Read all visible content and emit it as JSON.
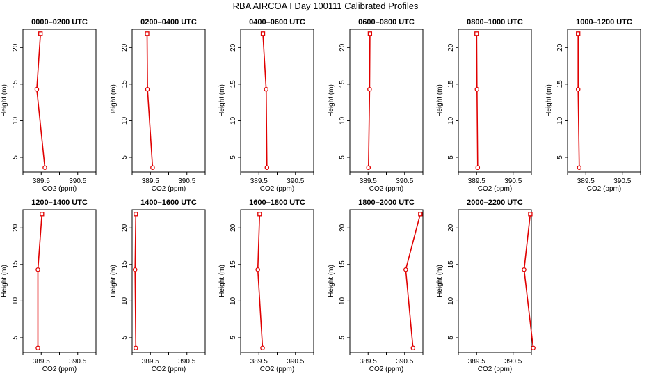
{
  "figure": {
    "title": "RBA AIRCOA I  Day 100111  Calibrated Profiles"
  },
  "chart_data": [
    {
      "type": "line",
      "title": "0000–0200 UTC",
      "xlabel": "CO2 (ppm)",
      "ylabel": "Height (m)",
      "xlim": [
        389.0,
        391.0
      ],
      "ylim": [
        3,
        22.5
      ],
      "x_ticks": [
        "389.5",
        "390.5"
      ],
      "y_ticks": [
        "5",
        "10",
        "15",
        "20"
      ],
      "color": "#e00000",
      "grid": false,
      "series": [
        {
          "x": [
            389.6,
            389.38,
            389.48
          ],
          "y": [
            3.6,
            14.3,
            21.9
          ]
        }
      ]
    },
    {
      "type": "line",
      "title": "0200–0400 UTC",
      "xlabel": "CO2 (ppm)",
      "ylabel": "Height (m)",
      "xlim": [
        389.0,
        391.0
      ],
      "ylim": [
        3,
        22.5
      ],
      "x_ticks": [
        "389.5",
        "390.5"
      ],
      "y_ticks": [
        "5",
        "10",
        "15",
        "20"
      ],
      "color": "#e00000",
      "grid": false,
      "series": [
        {
          "x": [
            389.56,
            389.42,
            389.41
          ],
          "y": [
            3.6,
            14.3,
            21.9
          ]
        }
      ]
    },
    {
      "type": "line",
      "title": "0400–0600 UTC",
      "xlabel": "CO2 (ppm)",
      "ylabel": "Height (m)",
      "xlim": [
        389.0,
        391.0
      ],
      "ylim": [
        3,
        22.5
      ],
      "x_ticks": [
        "389.5",
        "390.5"
      ],
      "y_ticks": [
        "5",
        "10",
        "15",
        "20"
      ],
      "color": "#e00000",
      "grid": false,
      "series": [
        {
          "x": [
            389.72,
            389.7,
            389.61
          ],
          "y": [
            3.6,
            14.3,
            21.9
          ]
        }
      ]
    },
    {
      "type": "line",
      "title": "0600–0800 UTC",
      "xlabel": "CO2 (ppm)",
      "ylabel": "Height (m)",
      "xlim": [
        389.0,
        391.0
      ],
      "ylim": [
        3,
        22.5
      ],
      "x_ticks": [
        "389.5",
        "390.5"
      ],
      "y_ticks": [
        "5",
        "10",
        "15",
        "20"
      ],
      "color": "#e00000",
      "grid": false,
      "series": [
        {
          "x": [
            389.51,
            389.54,
            389.55
          ],
          "y": [
            3.6,
            14.3,
            21.9
          ]
        }
      ]
    },
    {
      "type": "line",
      "title": "0800–1000 UTC",
      "xlabel": "CO2 (ppm)",
      "ylabel": "Height (m)",
      "xlim": [
        389.0,
        391.0
      ],
      "ylim": [
        3,
        22.5
      ],
      "x_ticks": [
        "389.5",
        "390.5"
      ],
      "y_ticks": [
        "5",
        "10",
        "15",
        "20"
      ],
      "color": "#e00000",
      "grid": false,
      "series": [
        {
          "x": [
            389.53,
            389.51,
            389.5
          ],
          "y": [
            3.6,
            14.3,
            21.9
          ]
        }
      ]
    },
    {
      "type": "line",
      "title": "1000–1200 UTC",
      "xlabel": "CO2 (ppm)",
      "ylabel": "Height (m)",
      "xlim": [
        389.0,
        391.0
      ],
      "ylim": [
        3,
        22.5
      ],
      "x_ticks": [
        "389.5",
        "390.5"
      ],
      "y_ticks": [
        "5",
        "10",
        "15",
        "20"
      ],
      "color": "#e00000",
      "grid": false,
      "series": [
        {
          "x": [
            389.32,
            389.29,
            389.29
          ],
          "y": [
            3.6,
            14.3,
            21.9
          ]
        }
      ]
    },
    {
      "type": "line",
      "title": "1200–1400 UTC",
      "xlabel": "CO2 (ppm)",
      "ylabel": "Height (m)",
      "xlim": [
        389.0,
        391.0
      ],
      "ylim": [
        3,
        22.5
      ],
      "x_ticks": [
        "389.5",
        "390.5"
      ],
      "y_ticks": [
        "5",
        "10",
        "15",
        "20"
      ],
      "color": "#e00000",
      "grid": false,
      "series": [
        {
          "x": [
            389.41,
            389.41,
            389.52
          ],
          "y": [
            3.6,
            14.3,
            21.9
          ]
        }
      ]
    },
    {
      "type": "line",
      "title": "1400–1600 UTC",
      "xlabel": "CO2 (ppm)",
      "ylabel": "Height (m)",
      "xlim": [
        389.0,
        391.0
      ],
      "ylim": [
        3,
        22.5
      ],
      "x_ticks": [
        "389.5",
        "390.5"
      ],
      "y_ticks": [
        "5",
        "10",
        "15",
        "20"
      ],
      "color": "#e00000",
      "grid": false,
      "series": [
        {
          "x": [
            389.1,
            389.08,
            389.1
          ],
          "y": [
            3.6,
            14.3,
            21.9
          ]
        }
      ]
    },
    {
      "type": "line",
      "title": "1600–1800 UTC",
      "xlabel": "CO2 (ppm)",
      "ylabel": "Height (m)",
      "xlim": [
        389.0,
        391.0
      ],
      "ylim": [
        3,
        22.5
      ],
      "x_ticks": [
        "389.5",
        "390.5"
      ],
      "y_ticks": [
        "5",
        "10",
        "15",
        "20"
      ],
      "color": "#e00000",
      "grid": false,
      "series": [
        {
          "x": [
            389.6,
            389.47,
            389.52
          ],
          "y": [
            3.6,
            14.3,
            21.9
          ]
        }
      ]
    },
    {
      "type": "line",
      "title": "1800–2000 UTC",
      "xlabel": "CO2 (ppm)",
      "ylabel": "Height (m)",
      "xlim": [
        389.0,
        391.0
      ],
      "ylim": [
        3,
        22.5
      ],
      "x_ticks": [
        "389.5",
        "390.5"
      ],
      "y_ticks": [
        "5",
        "10",
        "15",
        "20"
      ],
      "color": "#e00000",
      "grid": false,
      "series": [
        {
          "x": [
            390.73,
            390.53,
            390.93
          ],
          "y": [
            3.6,
            14.3,
            21.9
          ]
        }
      ]
    },
    {
      "type": "line",
      "title": "2000–2200 UTC",
      "xlabel": "CO2 (ppm)",
      "ylabel": "Height (m)",
      "xlim": [
        389.0,
        391.0
      ],
      "ylim": [
        3,
        22.5
      ],
      "x_ticks": [
        "389.5",
        "390.5"
      ],
      "y_ticks": [
        "5",
        "10",
        "15",
        "20"
      ],
      "color": "#e00000",
      "grid": false,
      "series": [
        {
          "x": [
            391.05,
            390.8,
            390.97
          ],
          "y": [
            3.6,
            14.3,
            21.9
          ]
        }
      ]
    }
  ]
}
